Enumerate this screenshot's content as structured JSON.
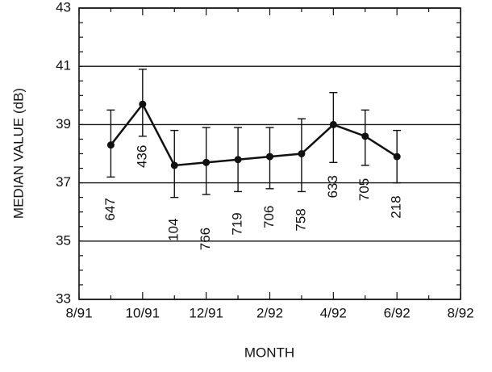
{
  "chart_data": {
    "type": "line",
    "x_label": "MONTH",
    "y_label": "MEDIAN VALUE (dB)",
    "categories": [
      "8/91",
      null,
      "10/91",
      null,
      "12/91",
      null,
      "2/92",
      null,
      "4/92",
      null,
      "6/92",
      null,
      "8/92"
    ],
    "values": [
      null,
      38.3,
      39.7,
      37.6,
      37.7,
      37.8,
      37.9,
      38.0,
      39.0,
      38.6,
      37.9,
      null,
      null
    ],
    "upper": [
      null,
      39.5,
      40.9,
      38.8,
      38.9,
      38.9,
      38.9,
      39.2,
      40.1,
      39.5,
      38.8,
      null,
      null
    ],
    "lower": [
      null,
      37.2,
      38.6,
      36.5,
      36.6,
      36.7,
      36.8,
      36.7,
      37.7,
      37.6,
      37.0,
      null,
      null
    ],
    "point_labels": [
      null,
      "647",
      "436",
      "104",
      "766",
      "719",
      "706",
      "758",
      "633",
      "705",
      "218",
      null,
      null
    ],
    "color": "#111111",
    "ylim": [
      33,
      43
    ],
    "yticks": [
      33,
      35,
      37,
      39,
      41,
      43
    ],
    "grid": true
  }
}
